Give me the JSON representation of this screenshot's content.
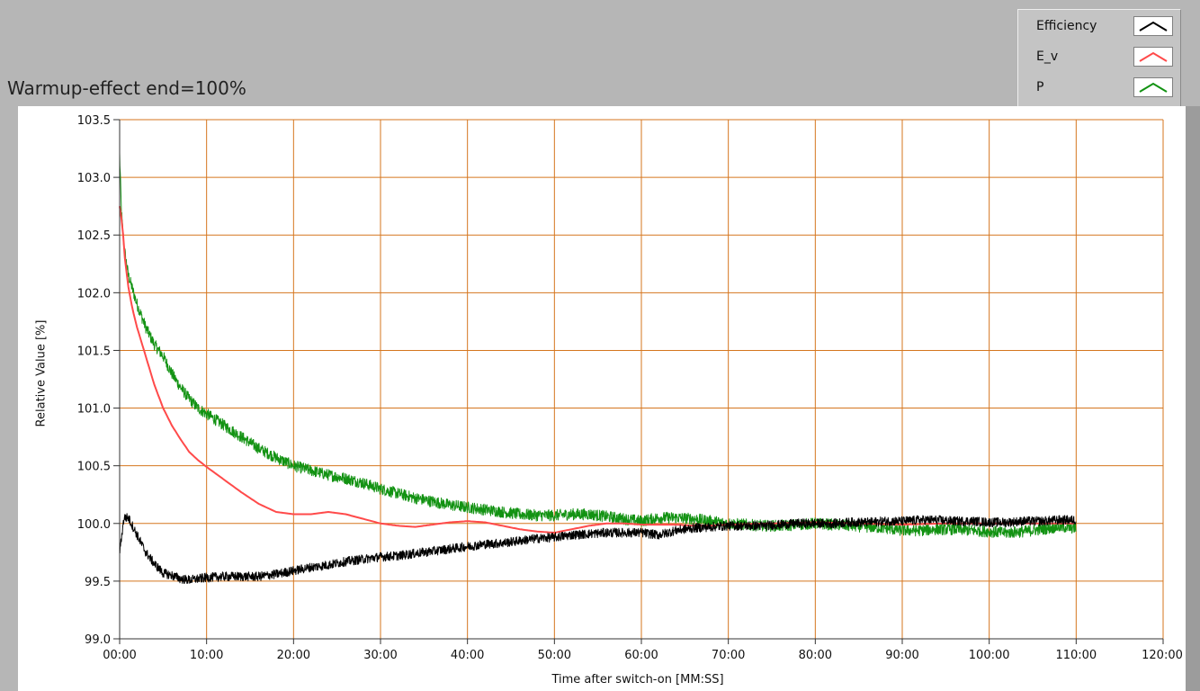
{
  "window": {
    "title": "Warmup-effect end=100%"
  },
  "legend": {
    "items": [
      {
        "label": "Efficiency",
        "color": "#000000",
        "icon": "line-icon"
      },
      {
        "label": "E_v",
        "color": "#ff4a4a",
        "icon": "line-icon"
      },
      {
        "label": "P",
        "color": "#129212",
        "icon": "line-icon"
      }
    ]
  },
  "colors": {
    "plot_background": "#ffffff",
    "grid": "#d5761e",
    "panel": "#b6b6b6"
  },
  "chart_data": {
    "type": "line",
    "title": "",
    "xlabel": "Time after switch-on [MM:SS]",
    "ylabel": "Relative Value [%]",
    "xlim": [
      0,
      120
    ],
    "ylim": [
      99.0,
      103.5
    ],
    "x_unit": "minutes",
    "x_ticks": [
      0,
      10,
      20,
      30,
      40,
      50,
      60,
      70,
      80,
      90,
      100,
      110,
      120
    ],
    "x_tick_labels": [
      "00:00",
      "10:00",
      "20:00",
      "30:00",
      "40:00",
      "50:00",
      "60:00",
      "70:00",
      "80:00",
      "90:00",
      "100:00",
      "110:00",
      "120:00"
    ],
    "y_ticks": [
      99.0,
      99.5,
      100.0,
      100.5,
      101.0,
      101.5,
      102.0,
      102.5,
      103.0,
      103.5
    ],
    "y_tick_labels": [
      "99.0",
      "99.5",
      "100.0",
      "100.5",
      "101.0",
      "101.5",
      "102.0",
      "102.5",
      "103.0",
      "103.5"
    ],
    "grid": true,
    "legend_position": "top-right",
    "series": [
      {
        "name": "Efficiency",
        "color": "#000000",
        "noise": 0.04,
        "x": [
          0,
          0.5,
          1,
          2,
          3,
          4,
          5,
          6,
          7,
          8,
          9,
          10,
          12,
          14,
          16,
          18,
          20,
          22,
          24,
          26,
          28,
          30,
          32,
          34,
          36,
          38,
          40,
          42,
          44,
          46,
          48,
          50,
          52,
          54,
          56,
          58,
          60,
          62,
          64,
          66,
          68,
          70,
          72,
          74,
          76,
          78,
          80,
          82,
          84,
          86,
          88,
          90,
          92,
          94,
          96,
          98,
          100,
          102,
          104,
          106,
          108,
          110
        ],
        "y": [
          99.75,
          100.05,
          100.05,
          99.9,
          99.75,
          99.65,
          99.57,
          99.55,
          99.52,
          99.51,
          99.52,
          99.53,
          99.54,
          99.54,
          99.54,
          99.56,
          99.59,
          99.62,
          99.64,
          99.67,
          99.69,
          99.71,
          99.72,
          99.74,
          99.76,
          99.78,
          99.8,
          99.82,
          99.83,
          99.85,
          99.87,
          99.88,
          99.9,
          99.91,
          99.92,
          99.92,
          99.92,
          99.9,
          99.94,
          99.96,
          99.97,
          99.98,
          99.98,
          99.98,
          99.99,
          100.0,
          100.0,
          100.0,
          100.01,
          100.01,
          100.02,
          100.02,
          100.03,
          100.03,
          100.02,
          100.02,
          100.01,
          100.01,
          100.02,
          100.02,
          100.03,
          100.03
        ]
      },
      {
        "name": "E_v",
        "color": "#ff4a4a",
        "noise": 0.0,
        "x": [
          0,
          0.3,
          0.6,
          1,
          1.5,
          2,
          3,
          4,
          5,
          6,
          7,
          8,
          9,
          10,
          12,
          14,
          16,
          18,
          20,
          22,
          24,
          26,
          28,
          30,
          32,
          34,
          36,
          38,
          40,
          42,
          44,
          46,
          48,
          50,
          52,
          54,
          56,
          58,
          60,
          62,
          64,
          66,
          68,
          70,
          75,
          80,
          85,
          90,
          95,
          100,
          105,
          110
        ],
        "y": [
          102.75,
          102.6,
          102.3,
          102.05,
          101.85,
          101.7,
          101.45,
          101.2,
          101.0,
          100.85,
          100.73,
          100.62,
          100.55,
          100.49,
          100.38,
          100.27,
          100.17,
          100.1,
          100.08,
          100.08,
          100.1,
          100.08,
          100.04,
          100.0,
          99.98,
          99.97,
          99.99,
          100.01,
          100.02,
          100.01,
          99.98,
          99.95,
          99.93,
          99.92,
          99.95,
          99.98,
          100.0,
          100.0,
          99.99,
          99.99,
          99.99,
          99.98,
          99.98,
          99.99,
          100.0,
          100.01,
          100.0,
          99.99,
          100.0,
          100.0,
          100.0,
          100.0
        ]
      },
      {
        "name": "P",
        "color": "#129212",
        "noise": 0.05,
        "x": [
          0,
          0.2,
          0.5,
          1,
          2,
          3,
          4,
          5,
          6,
          7,
          8,
          9,
          10,
          12,
          14,
          16,
          18,
          20,
          22,
          24,
          26,
          28,
          30,
          32,
          34,
          36,
          38,
          40,
          42,
          44,
          46,
          48,
          50,
          52,
          54,
          56,
          58,
          60,
          62,
          64,
          66,
          68,
          70,
          72,
          74,
          76,
          78,
          80,
          82,
          84,
          86,
          88,
          90,
          92,
          94,
          96,
          98,
          100,
          102,
          104,
          106,
          108,
          110
        ],
        "y": [
          103.2,
          102.7,
          102.4,
          102.15,
          101.9,
          101.7,
          101.55,
          101.45,
          101.3,
          101.18,
          101.08,
          101.0,
          100.95,
          100.85,
          100.75,
          100.65,
          100.57,
          100.5,
          100.46,
          100.42,
          100.39,
          100.35,
          100.3,
          100.26,
          100.22,
          100.19,
          100.16,
          100.14,
          100.12,
          100.1,
          100.08,
          100.07,
          100.07,
          100.08,
          100.08,
          100.06,
          100.04,
          100.02,
          100.05,
          100.05,
          100.04,
          100.02,
          100.0,
          99.99,
          99.98,
          99.98,
          99.99,
          100.0,
          99.99,
          99.98,
          99.97,
          99.96,
          99.94,
          99.94,
          99.95,
          99.95,
          99.94,
          99.93,
          99.92,
          99.93,
          99.95,
          99.97,
          99.96
        ]
      }
    ]
  }
}
